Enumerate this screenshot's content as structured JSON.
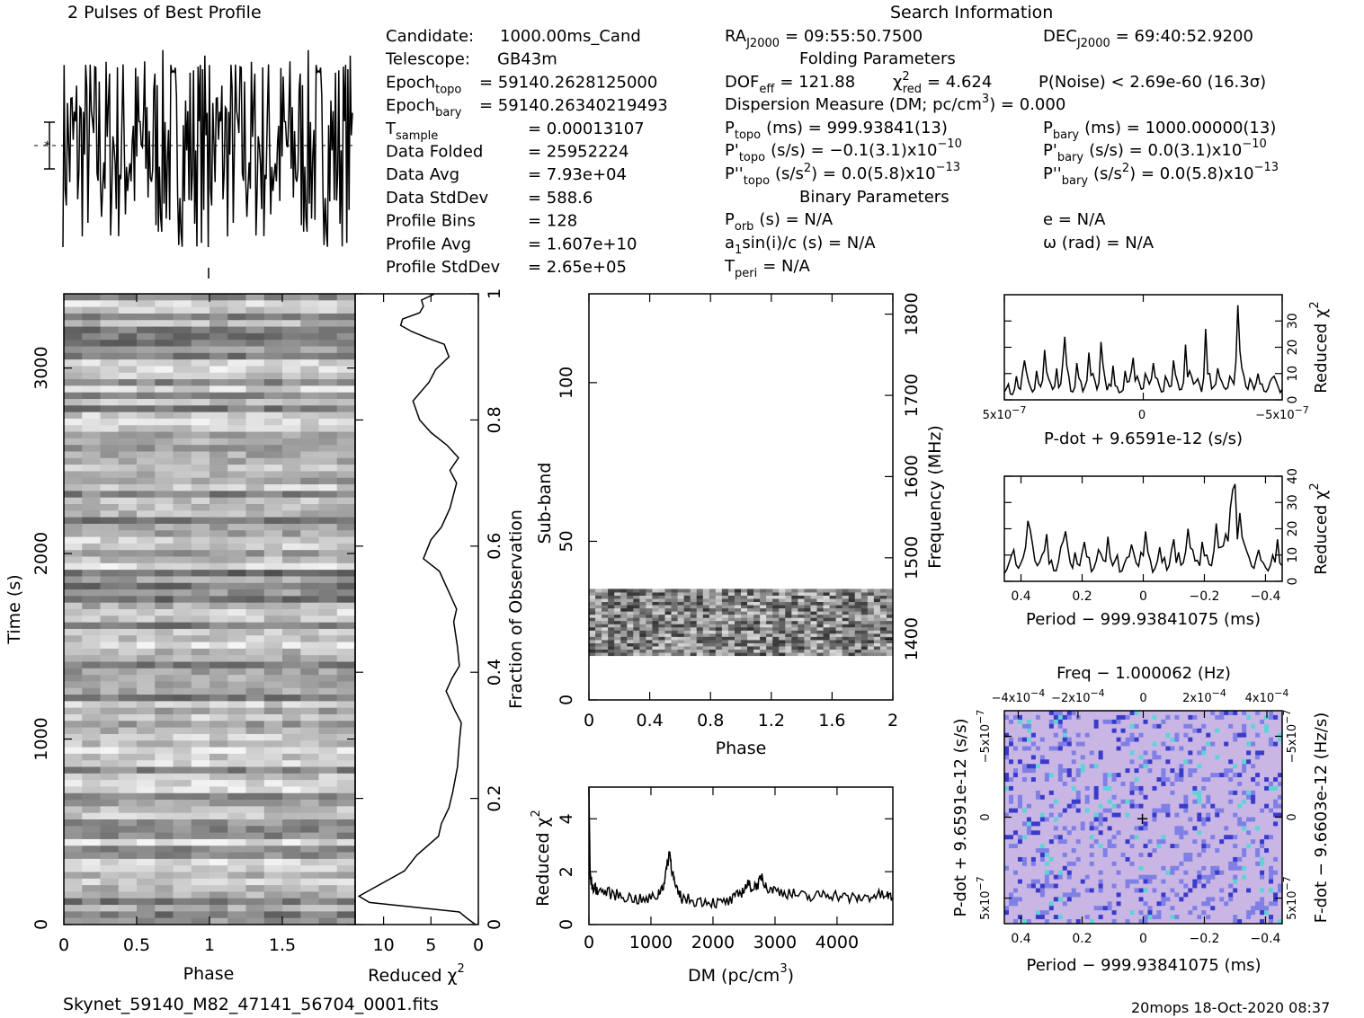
{
  "header": {
    "profile_title": "2 Pulses of Best Profile",
    "search_title": "Search Information",
    "filename": "Skynet_59140_M82_47141_56704_0001.fits",
    "footer_stamp": "20mops 18-Oct-2020 08:37"
  },
  "info_left": [
    {
      "label": "Candidate:",
      "value": "1000.00ms_Cand"
    },
    {
      "label": "Telescope:",
      "value": "GB43m"
    },
    {
      "label": "Epoch",
      "sub": "topo",
      "value": "= 59140.2628125000"
    },
    {
      "label": "Epoch",
      "sub": "bary",
      "value": "= 59140.26340219493"
    },
    {
      "label": "T",
      "sub": "sample",
      "value": "=   0.00013107"
    },
    {
      "label": "Data Folded",
      "value": "=   25952224"
    },
    {
      "label": "Data Avg",
      "value": "=   7.93e+04"
    },
    {
      "label": "Data StdDev",
      "value": "=   588.6"
    },
    {
      "label": "Profile Bins",
      "value": "=   128"
    },
    {
      "label": "Profile Avg",
      "value": "=   1.607e+10"
    },
    {
      "label": "Profile StdDev",
      "value": "=   2.65e+05"
    }
  ],
  "info_mid": {
    "ra": "RA",
    "ra_sub": "J2000",
    "ra_value": "= 09:55:50.7500",
    "dec": "DEC",
    "dec_sub": "J2000",
    "dec_value": "= 69:40:52.9200",
    "folding_title": "Folding Parameters",
    "dof": "DOF",
    "dof_sub": "eff",
    "dof_value": "= 121.88",
    "chi": "χ",
    "chi_sub": "red",
    "chi_value": "= 4.624",
    "pnoise": "P(Noise) < 2.69e-60   (16.3σ)",
    "dm_line": "Dispersion Measure (DM; pc/cm",
    "dm_end": ") = 0.000",
    "ptopo": "P",
    "ptopo_sub": "topo",
    "ptopo_value": "(ms)  =   999.93841(13)",
    "pbary": "P",
    "pbary_sub": "bary",
    "pbary_value": "(ms)  =   1000.00000(13)",
    "pdtopo": "P'",
    "pdtopo_sub": "topo",
    "pdtopo_value": "(s/s) = −0.1(3.1)x10",
    "pdtopo_exp": "−10",
    "pdbary": "P'",
    "pdbary_sub": "bary",
    "pdbary_value": "(s/s) = 0.0(3.1)x10",
    "pdbary_exp": "−10",
    "pddtopo": "P''",
    "pddtopo_sub": "topo",
    "pddtopo_value": "(s/s",
    "pddtopo_end": ") = 0.0(5.8)x10",
    "pddtopo_exp": "−13",
    "pddbary": "P''",
    "pddbary_sub": "bary",
    "pddbary_value": "(s/s",
    "pddbary_end": ") = 0.0(5.8)x10",
    "pddbary_exp": "−13",
    "binary_title": "Binary Parameters",
    "porb": "P",
    "porb_sub": "orb",
    "porb_value": "(s) = N/A",
    "ecc": "e = N/A",
    "asini": "a",
    "asini_sub": "1",
    "asini_value": "sin(i)/c (s) = N/A",
    "omega": "ω (rad) = N/A",
    "tperi": "T",
    "tperi_sub": "peri",
    "tperi_value": "= N/A"
  },
  "chart_data": [
    {
      "type": "line",
      "title": "2 Pulses of Best Profile",
      "xlabel": "",
      "ylabel": "",
      "xlim": [
        0,
        2
      ]
    },
    {
      "type": "heatmap",
      "xlabel": "Phase",
      "ylabel": "Time (s)",
      "xlim": [
        0,
        2
      ],
      "ylim": [
        0,
        3400
      ],
      "xticks": [
        "0",
        "0.5",
        "1",
        "1.5"
      ],
      "yticks": [
        "0",
        "1000",
        "2000",
        "3000"
      ]
    },
    {
      "type": "line",
      "xlabel": "Reduced χ",
      "xlabel_exp": "2",
      "ylabel": "Fraction of Observation",
      "xlim": [
        13,
        0
      ],
      "ylim": [
        0,
        1
      ],
      "xticks": [
        "10",
        "5",
        "0"
      ],
      "yticks": [
        "0",
        "0.2",
        "0.4",
        "0.6",
        "0.8",
        "1"
      ],
      "x": [
        0.3,
        1.2,
        2.0,
        11.5,
        12.6,
        7.8,
        6.5,
        4.2,
        3.9,
        3.1,
        2.7,
        2.2,
        2.0,
        1.8,
        2.5,
        3.4,
        2.8,
        2.0,
        2.2,
        2.6,
        2.3,
        3.2,
        4.1,
        5.8,
        5.0,
        3.9,
        3.0,
        2.3,
        3.0,
        2.1,
        3.3,
        5.0,
        6.2,
        6.9,
        5.2,
        4.5,
        3.1,
        3.6,
        5.4,
        7.0,
        8.2,
        8.0,
        6.2,
        5.8,
        6.0,
        4.6
      ],
      "y": [
        0.0,
        0.01,
        0.02,
        0.035,
        0.045,
        0.085,
        0.11,
        0.14,
        0.16,
        0.185,
        0.21,
        0.25,
        0.29,
        0.32,
        0.34,
        0.37,
        0.39,
        0.41,
        0.44,
        0.48,
        0.5,
        0.53,
        0.56,
        0.58,
        0.61,
        0.63,
        0.66,
        0.7,
        0.72,
        0.74,
        0.76,
        0.78,
        0.8,
        0.83,
        0.86,
        0.88,
        0.9,
        0.92,
        0.93,
        0.94,
        0.95,
        0.96,
        0.97,
        0.98,
        0.99,
        1.0
      ]
    },
    {
      "type": "heatmap",
      "xlabel": "Phase",
      "ylabel": "Sub-band",
      "y2label": "Frequency (MHz)",
      "xlim": [
        0,
        2
      ],
      "ylim": [
        0,
        128
      ],
      "xticks": [
        "0",
        "0.4",
        "0.8",
        "1.2",
        "1.6",
        "2"
      ],
      "yticks": [
        "0",
        "50",
        "100"
      ],
      "y2ticks": [
        "1400",
        "1500",
        "1600",
        "1700",
        "1800"
      ],
      "y2lim": [
        1325,
        1825
      ],
      "filled_subbands": [
        14,
        35
      ]
    },
    {
      "type": "line",
      "xlabel": "DM (pc/cm",
      "xlabel_exp": "3",
      "xlabel_end": ")",
      "ylabel": "Reduced χ",
      "ylabel_exp": "2",
      "xlim": [
        0,
        4900
      ],
      "ylim": [
        0,
        5.2
      ],
      "xticks": [
        "0",
        "1000",
        "2000",
        "3000",
        "4000"
      ],
      "yticks": [
        "0",
        "2",
        "4"
      ],
      "x": [
        0,
        20,
        60,
        150,
        300,
        500,
        700,
        900,
        1100,
        1200,
        1270,
        1300,
        1330,
        1400,
        1500,
        1700,
        1900,
        2100,
        2300,
        2450,
        2550,
        2650,
        2750,
        2790,
        2850,
        3000,
        3200,
        3400,
        3600,
        3800,
        4000,
        4200,
        4400,
        4600,
        4800,
        4900
      ],
      "y": [
        5.2,
        1.8,
        1.4,
        1.3,
        1.2,
        1.1,
        1.0,
        0.9,
        1.1,
        1.5,
        2.3,
        2.8,
        2.2,
        1.3,
        1.0,
        0.9,
        0.9,
        0.8,
        0.9,
        1.2,
        1.5,
        1.4,
        1.6,
        1.9,
        1.4,
        1.3,
        1.2,
        1.1,
        1.0,
        1.2,
        1.1,
        1.0,
        1.0,
        1.1,
        1.1,
        1.0
      ]
    },
    {
      "type": "line",
      "xlabel": "P-dot + 9.6591e-12 (s/s)",
      "ylabel": "Reduced χ",
      "ylabel_exp": "2",
      "xticks": [
        "5x10",
        "0",
        "−5x10"
      ],
      "xtick_exp": "−7",
      "yticks": [
        "0",
        "10",
        "20",
        "30"
      ],
      "ylim": [
        0,
        40
      ],
      "values": [
        3,
        6,
        2,
        9,
        4,
        15,
        7,
        3,
        11,
        5,
        19,
        8,
        4,
        12,
        6,
        24,
        9,
        3,
        14,
        7,
        5,
        18,
        10,
        4,
        22,
        8,
        6,
        13,
        5,
        3,
        11,
        7,
        16,
        9,
        4,
        10,
        6,
        14,
        8,
        3,
        9,
        5,
        15,
        7,
        4,
        21,
        11,
        6,
        8,
        3,
        27,
        10,
        5,
        12,
        7,
        4,
        9,
        6,
        36,
        12,
        5,
        8,
        4,
        10,
        6,
        3,
        7,
        9,
        5,
        4
      ]
    },
    {
      "type": "line",
      "xlabel": "Period − 999.93841075 (ms)",
      "ylabel": "Reduced χ",
      "ylabel_exp": "2",
      "xticks": [
        "0.4",
        "0.2",
        "0",
        "−0.2",
        "−0.4"
      ],
      "yticks": [
        "0",
        "10",
        "20",
        "30",
        "40"
      ],
      "ylim": [
        0,
        40
      ],
      "values": [
        3,
        7,
        12,
        5,
        9,
        23,
        14,
        6,
        10,
        18,
        8,
        4,
        13,
        19,
        7,
        11,
        6,
        15,
        9,
        5,
        12,
        8,
        17,
        6,
        10,
        4,
        9,
        14,
        7,
        11,
        19,
        8,
        5,
        13,
        9,
        6,
        16,
        11,
        7,
        20,
        12,
        8,
        15,
        10,
        6,
        22,
        13,
        18,
        28,
        37,
        26,
        14,
        9,
        5,
        12,
        7,
        4,
        10,
        16,
        6
      ]
    },
    {
      "type": "heatmap",
      "title": "Freq − 1.000062 (Hz)",
      "xlabel": "Period − 999.93841075 (ms)",
      "ylabel": "P-dot + 9.6591e-12 (s/s)",
      "y2label": "F-dot − 9.6603e-12 (Hz/s)",
      "xticks": [
        "0.4",
        "0.2",
        "0",
        "−0.2",
        "−0.4"
      ],
      "x2ticks": [
        "−4x10",
        "−2x10",
        "0",
        "2x10",
        "4x10"
      ],
      "x2tick_exp": "−4",
      "yticks": [
        "5x10",
        "0",
        "−5x10"
      ],
      "ytick_exp": "−7",
      "y2ticks": [
        "−5x10",
        "0",
        "5x10"
      ],
      "y2tick_exp": "−7",
      "colors": [
        "#c9b6e4",
        "#7f7fe6",
        "#3a3acb",
        "#5fd3d8"
      ]
    }
  ]
}
